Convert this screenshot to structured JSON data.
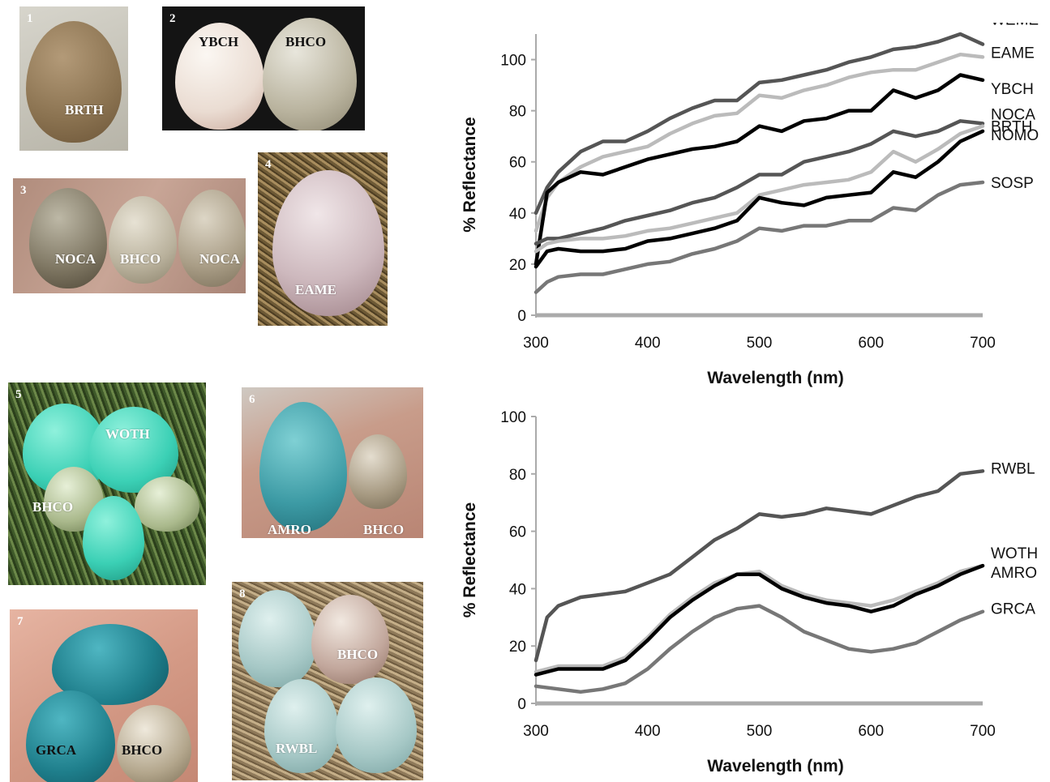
{
  "photos": [
    {
      "number": "1",
      "labels": [
        "BRTH"
      ]
    },
    {
      "number": "2",
      "labels": [
        "YBCH",
        "BHCO"
      ]
    },
    {
      "number": "3",
      "labels": [
        "NOCA",
        "BHCO",
        "NOCA"
      ]
    },
    {
      "number": "4",
      "labels": [
        "EAME"
      ]
    },
    {
      "number": "5",
      "labels": [
        "WOTH",
        "BHCO"
      ]
    },
    {
      "number": "6",
      "labels": [
        "AMRO",
        "BHCO"
      ]
    },
    {
      "number": "7",
      "labels": [
        "GRCA",
        "BHCO"
      ]
    },
    {
      "number": "8",
      "labels": [
        "BHCO",
        "RWBL"
      ]
    }
  ],
  "chart_data": [
    {
      "type": "line",
      "xlabel": "Wavelength (nm)",
      "ylabel": "% Reflectance",
      "xlim": [
        300,
        700
      ],
      "ylim": [
        0,
        110
      ],
      "xticks": [
        300,
        400,
        500,
        600,
        700
      ],
      "yticks": [
        0,
        20,
        40,
        60,
        80,
        100
      ],
      "grid": false,
      "legend": "right-end labels",
      "series": [
        {
          "name": "WEME",
          "color": "#555555",
          "x": [
            300,
            310,
            320,
            340,
            360,
            380,
            400,
            420,
            440,
            460,
            480,
            500,
            520,
            540,
            560,
            580,
            600,
            620,
            640,
            660,
            680,
            700
          ],
          "values": [
            40,
            50,
            56,
            64,
            68,
            68,
            72,
            77,
            81,
            84,
            84,
            91,
            92,
            94,
            96,
            99,
            101,
            104,
            105,
            107,
            110,
            106
          ]
        },
        {
          "name": "EAME",
          "color": "#bbbbbb",
          "x": [
            300,
            310,
            320,
            340,
            360,
            380,
            400,
            420,
            440,
            460,
            480,
            500,
            520,
            540,
            560,
            580,
            600,
            620,
            640,
            660,
            680,
            700
          ],
          "values": [
            33,
            46,
            52,
            58,
            62,
            64,
            66,
            71,
            75,
            78,
            79,
            86,
            85,
            88,
            90,
            93,
            95,
            96,
            96,
            99,
            102,
            101
          ]
        },
        {
          "name": "YBCH",
          "color": "#000000",
          "x": [
            300,
            310,
            320,
            340,
            360,
            380,
            400,
            420,
            440,
            460,
            480,
            500,
            520,
            540,
            560,
            580,
            600,
            620,
            640,
            660,
            680,
            700
          ],
          "values": [
            20,
            48,
            52,
            56,
            55,
            58,
            61,
            63,
            65,
            66,
            68,
            74,
            72,
            76,
            77,
            80,
            80,
            88,
            85,
            88,
            94,
            92
          ]
        },
        {
          "name": "NOCA",
          "color": "#555555",
          "x": [
            300,
            310,
            320,
            340,
            360,
            380,
            400,
            420,
            440,
            460,
            480,
            500,
            520,
            540,
            560,
            580,
            600,
            620,
            640,
            660,
            680,
            700
          ],
          "values": [
            28,
            30,
            30,
            32,
            34,
            37,
            39,
            41,
            44,
            46,
            50,
            55,
            55,
            60,
            62,
            64,
            67,
            72,
            70,
            72,
            76,
            75
          ]
        },
        {
          "name": "BRTH",
          "color": "#bbbbbb",
          "x": [
            300,
            310,
            320,
            340,
            360,
            380,
            400,
            420,
            440,
            460,
            480,
            500,
            520,
            540,
            560,
            580,
            600,
            620,
            640,
            660,
            680,
            700
          ],
          "values": [
            25,
            28,
            29,
            30,
            30,
            31,
            33,
            34,
            36,
            38,
            40,
            47,
            49,
            51,
            52,
            53,
            56,
            64,
            60,
            65,
            71,
            74
          ]
        },
        {
          "name": "NOMO",
          "color": "#000000",
          "x": [
            300,
            310,
            320,
            340,
            360,
            380,
            400,
            420,
            440,
            460,
            480,
            500,
            520,
            540,
            560,
            580,
            600,
            620,
            640,
            660,
            680,
            700
          ],
          "values": [
            19,
            25,
            26,
            25,
            25,
            26,
            29,
            30,
            32,
            34,
            37,
            46,
            44,
            43,
            46,
            47,
            48,
            56,
            54,
            60,
            68,
            72
          ]
        },
        {
          "name": "SOSP",
          "color": "#777777",
          "x": [
            300,
            310,
            320,
            340,
            360,
            380,
            400,
            420,
            440,
            460,
            480,
            500,
            520,
            540,
            560,
            580,
            600,
            620,
            640,
            660,
            680,
            700
          ],
          "values": [
            9,
            13,
            15,
            16,
            16,
            18,
            20,
            21,
            24,
            26,
            29,
            34,
            33,
            35,
            35,
            37,
            37,
            42,
            41,
            47,
            51,
            52
          ]
        }
      ]
    },
    {
      "type": "line",
      "xlabel": "Wavelength (nm)",
      "ylabel": "% Reflectance",
      "xlim": [
        300,
        700
      ],
      "ylim": [
        0,
        100
      ],
      "xticks": [
        300,
        400,
        500,
        600,
        700
      ],
      "yticks": [
        0,
        20,
        40,
        60,
        80,
        100
      ],
      "grid": false,
      "legend": "right-end labels",
      "series": [
        {
          "name": "RWBL",
          "color": "#555555",
          "x": [
            300,
            310,
            320,
            340,
            360,
            380,
            400,
            420,
            440,
            460,
            480,
            500,
            520,
            540,
            560,
            580,
            600,
            620,
            640,
            660,
            680,
            700
          ],
          "values": [
            15,
            30,
            34,
            37,
            38,
            39,
            42,
            45,
            51,
            57,
            61,
            66,
            65,
            66,
            68,
            67,
            66,
            69,
            72,
            74,
            80,
            81
          ]
        },
        {
          "name": "WOTH",
          "color": "#bbbbbb",
          "x": [
            300,
            320,
            340,
            360,
            380,
            400,
            420,
            440,
            460,
            480,
            500,
            520,
            540,
            560,
            580,
            600,
            620,
            640,
            660,
            680,
            700
          ],
          "values": [
            11,
            13,
            13,
            13,
            16,
            23,
            31,
            37,
            42,
            45,
            46,
            41,
            38,
            36,
            35,
            34,
            36,
            39,
            42,
            46,
            48
          ]
        },
        {
          "name": "AMRO",
          "color": "#000000",
          "x": [
            300,
            320,
            340,
            360,
            380,
            400,
            420,
            440,
            460,
            480,
            500,
            520,
            540,
            560,
            580,
            600,
            620,
            640,
            660,
            680,
            700
          ],
          "values": [
            10,
            12,
            12,
            12,
            15,
            22,
            30,
            36,
            41,
            45,
            45,
            40,
            37,
            35,
            34,
            32,
            34,
            38,
            41,
            45,
            48
          ]
        },
        {
          "name": "GRCA",
          "color": "#777777",
          "x": [
            300,
            320,
            340,
            360,
            380,
            400,
            420,
            440,
            460,
            480,
            500,
            520,
            540,
            560,
            580,
            600,
            620,
            640,
            660,
            680,
            700
          ],
          "values": [
            6,
            5,
            4,
            5,
            7,
            12,
            19,
            25,
            30,
            33,
            34,
            30,
            25,
            22,
            19,
            18,
            19,
            21,
            25,
            29,
            32
          ]
        }
      ]
    }
  ]
}
